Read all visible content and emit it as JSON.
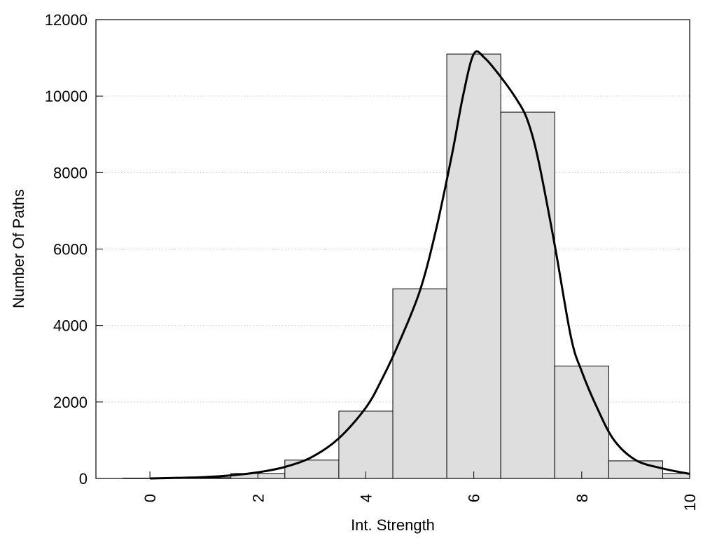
{
  "chart_data": {
    "type": "bar",
    "title": "",
    "xlabel": "Int. Strength",
    "ylabel": "Number Of Paths",
    "xlim": [
      -1,
      10
    ],
    "ylim": [
      0,
      12000
    ],
    "xticks": [
      0,
      2,
      4,
      6,
      8,
      10
    ],
    "yticks": [
      0,
      2000,
      4000,
      6000,
      8000,
      10000,
      12000
    ],
    "grid": "horizontal dotted",
    "bins": {
      "centers": [
        0,
        1,
        2,
        3,
        4,
        5,
        6,
        7,
        8,
        9,
        10
      ],
      "width": 1,
      "values": [
        10,
        20,
        130,
        480,
        1760,
        4960,
        11100,
        9580,
        2940,
        460,
        130
      ]
    },
    "curve": {
      "x": [
        0,
        0.5,
        1,
        1.5,
        2,
        2.5,
        3,
        3.5,
        4,
        4.3,
        4.6,
        5,
        5.3,
        5.6,
        5.8,
        6,
        6.2,
        6.5,
        6.8,
        7,
        7.2,
        7.5,
        7.8,
        8,
        8.3,
        8.6,
        9,
        9.5,
        10
      ],
      "y": [
        0,
        15,
        35,
        80,
        160,
        300,
        560,
        1050,
        1850,
        2600,
        3500,
        4900,
        6500,
        8500,
        10000,
        11100,
        11000,
        10500,
        9900,
        9350,
        8300,
        6100,
        3700,
        2800,
        1800,
        1000,
        480,
        260,
        120
      ]
    },
    "colors": {
      "bar_fill": "#dedede",
      "bar_stroke": "#000000",
      "curve": "#000000",
      "grid": "#c8c8c8"
    }
  }
}
